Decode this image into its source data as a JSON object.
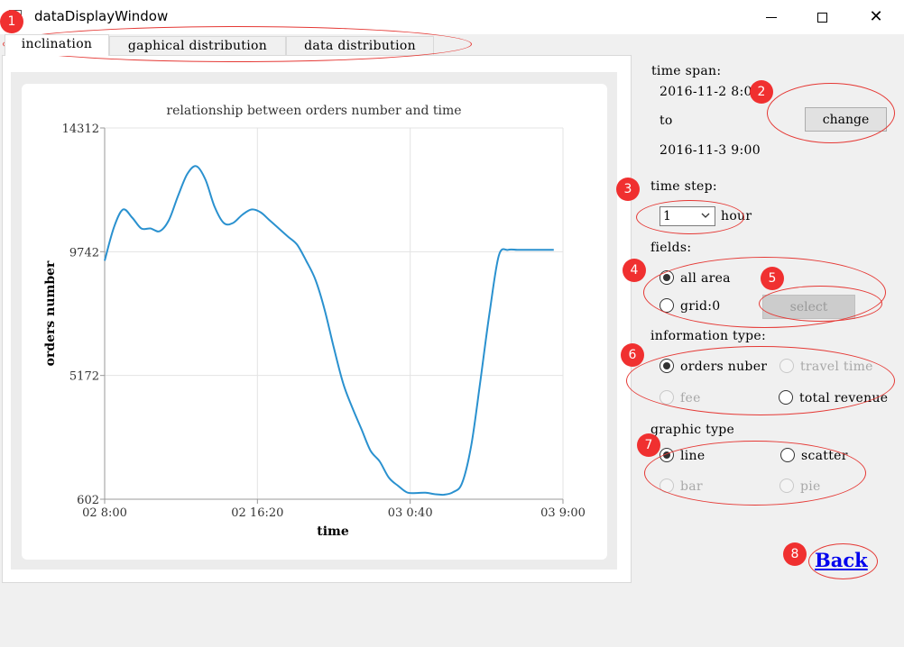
{
  "window": {
    "title": "dataDisplayWindow",
    "app_icon": "app-window-icon"
  },
  "tabs": [
    {
      "label": "inclination",
      "active": true
    },
    {
      "label": "gaphical distribution",
      "active": false
    },
    {
      "label": "data distribution",
      "active": false
    }
  ],
  "chart_data": {
    "type": "line",
    "title": "relationship between orders number and time",
    "xlabel": "time",
    "ylabel": "orders number",
    "x_tick_labels": [
      "02 8:00",
      "02 16:20",
      "03 0:40",
      "03 9:00"
    ],
    "y_tick_labels": [
      "14312",
      "9742",
      "5172",
      "602"
    ],
    "ylim": [
      602,
      14312
    ],
    "x_unit": "hours after 2016-11-2 8:00",
    "xlim": [
      0,
      25
    ],
    "grid": true,
    "line_color": "#2a91cf",
    "series": [
      {
        "x": [
          0,
          0.5,
          1,
          1.5,
          2,
          2.5,
          3,
          3.5,
          4,
          4.5,
          5,
          5.5,
          6,
          6.5,
          7,
          7.5,
          8,
          8.5,
          9,
          9.5,
          10,
          10.5,
          11,
          11.5,
          12,
          12.5,
          13,
          13.5,
          14,
          14.5,
          15,
          15.5,
          16,
          16.5,
          17,
          17.5,
          18,
          18.5,
          19,
          19.5,
          20,
          20.5,
          21,
          21.5,
          22,
          22.5,
          23,
          23.5,
          24,
          24.5
        ],
        "values": [
          9410,
          10630,
          11300,
          11000,
          10600,
          10600,
          10500,
          10900,
          11800,
          12600,
          12900,
          12400,
          11400,
          10800,
          10800,
          11100,
          11300,
          11200,
          10900,
          10600,
          10300,
          10000,
          9400,
          8700,
          7600,
          6200,
          4900,
          4000,
          3200,
          2400,
          2000,
          1400,
          1100,
          850,
          830,
          840,
          790,
          770,
          860,
          1200,
          2600,
          5000,
          7500,
          9600,
          9810,
          9810,
          9810,
          9810,
          9810,
          9810
        ]
      }
    ]
  },
  "side": {
    "time_span_label": "time span:",
    "start_time": "2016-11-2 8:00",
    "to_label": "to",
    "end_time": "2016-11-3 9:00",
    "change_label": "change",
    "time_step_label": "time step:",
    "time_step_value": "1",
    "time_step_unit": "hour",
    "fields_label": "fields:",
    "all_area_label": "all area",
    "grid_label": "grid:0",
    "select_label": "select",
    "info_type_label": "information type:",
    "orders_label": "orders nuber",
    "travel_time_label": "travel time",
    "fee_label": "fee",
    "total_revenue_label": "total revenue",
    "graphic_type_label": "graphic type",
    "line_label": "line",
    "scatter_label": "scatter",
    "bar_label": "bar",
    "pie_label": "pie",
    "back_label": "Back"
  },
  "annotations": [
    "1",
    "2",
    "3",
    "4",
    "5",
    "6",
    "7",
    "8"
  ],
  "colors": {
    "annotation_red": "#f03030",
    "link_blue": "#0000ee"
  }
}
